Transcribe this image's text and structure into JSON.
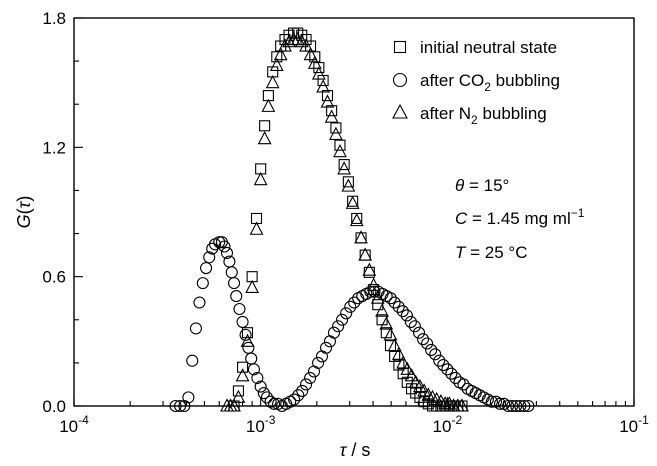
{
  "chart_data": {
    "type": "scatter",
    "title": "",
    "xlabel": {
      "main": "τ",
      "unit": " / s"
    },
    "ylabel": {
      "main": "G",
      "paren_open": "(",
      "var": "τ",
      "paren_close": ")"
    },
    "xscale": "log",
    "xlim": [
      0.0001,
      0.1
    ],
    "ylim": [
      0,
      1.8
    ],
    "grid": false,
    "legend_position": "top-right",
    "x_ticks": [
      {
        "value": 0.0001,
        "base": "10",
        "exp": "-4"
      },
      {
        "value": 0.001,
        "base": "10",
        "exp": "-3"
      },
      {
        "value": 0.01,
        "base": "10",
        "exp": "-2"
      },
      {
        "value": 0.1,
        "base": "10",
        "exp": "-1"
      }
    ],
    "y_ticks": [
      {
        "value": 0,
        "label": "0.0"
      },
      {
        "value": 0.6,
        "label": "0.6"
      },
      {
        "value": 1.2,
        "label": "1.2"
      },
      {
        "value": 1.8,
        "label": "1.8"
      }
    ],
    "series": [
      {
        "name": "initial neutral state",
        "marker": "square",
        "points": [
          [
            0.00072,
            0.0
          ],
          [
            0.00076,
            0.07
          ],
          [
            0.0008,
            0.18
          ],
          [
            0.00085,
            0.34
          ],
          [
            0.0009,
            0.6
          ],
          [
            0.00095,
            0.87
          ],
          [
            0.001,
            1.1
          ],
          [
            0.00105,
            1.3
          ],
          [
            0.0011,
            1.44
          ],
          [
            0.00116,
            1.55
          ],
          [
            0.00122,
            1.62
          ],
          [
            0.00128,
            1.67
          ],
          [
            0.00135,
            1.7
          ],
          [
            0.00142,
            1.72
          ],
          [
            0.0015,
            1.73
          ],
          [
            0.00158,
            1.73
          ],
          [
            0.00166,
            1.72
          ],
          [
            0.00175,
            1.7
          ],
          [
            0.00185,
            1.67
          ],
          [
            0.00195,
            1.62
          ],
          [
            0.00205,
            1.57
          ],
          [
            0.00216,
            1.51
          ],
          [
            0.00228,
            1.44
          ],
          [
            0.0024,
            1.37
          ],
          [
            0.00253,
            1.29
          ],
          [
            0.00266,
            1.21
          ],
          [
            0.0028,
            1.12
          ],
          [
            0.00295,
            1.04
          ],
          [
            0.00311,
            0.95
          ],
          [
            0.00327,
            0.87
          ],
          [
            0.00345,
            0.78
          ],
          [
            0.00363,
            0.7
          ],
          [
            0.00382,
            0.62
          ],
          [
            0.00403,
            0.54
          ],
          [
            0.00424,
            0.47
          ],
          [
            0.00447,
            0.4
          ],
          [
            0.00471,
            0.34
          ],
          [
            0.00496,
            0.28
          ],
          [
            0.00522,
            0.23
          ],
          [
            0.0055,
            0.19
          ],
          [
            0.0058,
            0.15
          ],
          [
            0.0061,
            0.11
          ],
          [
            0.00643,
            0.08
          ],
          [
            0.00677,
            0.06
          ],
          [
            0.00713,
            0.04
          ],
          [
            0.00751,
            0.02
          ],
          [
            0.00791,
            0.01
          ],
          [
            0.00833,
            0.0
          ],
          [
            0.00877,
            0.0
          ],
          [
            0.00924,
            0.0
          ],
          [
            0.00973,
            0.0
          ],
          [
            0.01025,
            0.0
          ],
          [
            0.0108,
            0.0
          ],
          [
            0.01137,
            0.0
          ],
          [
            0.01198,
            0.0
          ]
        ]
      },
      {
        "name": "after CO2 bubbling",
        "legend_parts": {
          "pre": "after CO",
          "sub": "2",
          "post": " bubbling"
        },
        "marker": "circle",
        "points": [
          [
            0.00035,
            0.0
          ],
          [
            0.00037,
            0.0
          ],
          [
            0.00039,
            0.0
          ],
          [
            0.00041,
            0.04
          ],
          [
            0.00043,
            0.21
          ],
          [
            0.00045,
            0.36
          ],
          [
            0.00047,
            0.48
          ],
          [
            0.00049,
            0.57
          ],
          [
            0.00051,
            0.64
          ],
          [
            0.00053,
            0.69
          ],
          [
            0.00055,
            0.73
          ],
          [
            0.00057,
            0.75
          ],
          [
            0.0006,
            0.76
          ],
          [
            0.00062,
            0.76
          ],
          [
            0.00064,
            0.74
          ],
          [
            0.00066,
            0.71
          ],
          [
            0.00068,
            0.67
          ],
          [
            0.0007,
            0.62
          ],
          [
            0.00072,
            0.57
          ],
          [
            0.00074,
            0.51
          ],
          [
            0.00077,
            0.45
          ],
          [
            0.0008,
            0.39
          ],
          [
            0.00083,
            0.33
          ],
          [
            0.00086,
            0.27
          ],
          [
            0.00089,
            0.22
          ],
          [
            0.00092,
            0.17
          ],
          [
            0.00096,
            0.13
          ],
          [
            0.001,
            0.09
          ],
          [
            0.00104,
            0.06
          ],
          [
            0.00108,
            0.04
          ],
          [
            0.00113,
            0.02
          ],
          [
            0.00118,
            0.01
          ],
          [
            0.00124,
            0.01
          ],
          [
            0.0013,
            0.0
          ],
          [
            0.00137,
            0.01
          ],
          [
            0.00144,
            0.02
          ],
          [
            0.00151,
            0.03
          ],
          [
            0.00159,
            0.05
          ],
          [
            0.00167,
            0.07
          ],
          [
            0.00175,
            0.1
          ],
          [
            0.00184,
            0.13
          ],
          [
            0.00193,
            0.16
          ],
          [
            0.00203,
            0.2
          ],
          [
            0.00213,
            0.23
          ],
          [
            0.00224,
            0.27
          ],
          [
            0.00235,
            0.3
          ],
          [
            0.00247,
            0.34
          ],
          [
            0.0026,
            0.37
          ],
          [
            0.00273,
            0.4
          ],
          [
            0.00287,
            0.43
          ],
          [
            0.00302,
            0.46
          ],
          [
            0.00317,
            0.48
          ],
          [
            0.00333,
            0.5
          ],
          [
            0.0035,
            0.51
          ],
          [
            0.00368,
            0.52
          ],
          [
            0.00387,
            0.53
          ],
          [
            0.00407,
            0.53
          ],
          [
            0.00428,
            0.53
          ],
          [
            0.0045,
            0.52
          ],
          [
            0.00473,
            0.51
          ],
          [
            0.00497,
            0.5
          ],
          [
            0.00522,
            0.48
          ],
          [
            0.00549,
            0.46
          ],
          [
            0.00577,
            0.44
          ],
          [
            0.00607,
            0.42
          ],
          [
            0.00638,
            0.39
          ],
          [
            0.0067,
            0.37
          ],
          [
            0.00705,
            0.34
          ],
          [
            0.00741,
            0.31
          ],
          [
            0.00779,
            0.29
          ],
          [
            0.00819,
            0.26
          ],
          [
            0.00861,
            0.24
          ],
          [
            0.00905,
            0.21
          ],
          [
            0.00951,
            0.19
          ],
          [
            0.01,
            0.17
          ],
          [
            0.01051,
            0.15
          ],
          [
            0.01105,
            0.13
          ],
          [
            0.01162,
            0.11
          ],
          [
            0.01221,
            0.1
          ],
          [
            0.01284,
            0.08
          ],
          [
            0.0135,
            0.07
          ],
          [
            0.01419,
            0.06
          ],
          [
            0.01492,
            0.05
          ],
          [
            0.01568,
            0.04
          ],
          [
            0.01649,
            0.03
          ],
          [
            0.01733,
            0.02
          ],
          [
            0.01822,
            0.02
          ],
          [
            0.01915,
            0.01
          ],
          [
            0.02013,
            0.01
          ],
          [
            0.02117,
            0.0
          ],
          [
            0.02225,
            0.0
          ],
          [
            0.02339,
            0.0
          ],
          [
            0.02459,
            0.0
          ],
          [
            0.02585,
            0.0
          ],
          [
            0.02717,
            0.0
          ]
        ]
      },
      {
        "name": "after N2 bubbling",
        "legend_parts": {
          "pre": "after N",
          "sub": "2",
          "post": " bubbling"
        },
        "marker": "triangle",
        "points": [
          [
            0.00066,
            0.0
          ],
          [
            0.00069,
            0.0
          ],
          [
            0.00072,
            0.0
          ],
          [
            0.00076,
            0.04
          ],
          [
            0.0008,
            0.14
          ],
          [
            0.00085,
            0.3
          ],
          [
            0.0009,
            0.55
          ],
          [
            0.00095,
            0.82
          ],
          [
            0.001,
            1.05
          ],
          [
            0.00105,
            1.24
          ],
          [
            0.0011,
            1.39
          ],
          [
            0.00116,
            1.5
          ],
          [
            0.00122,
            1.58
          ],
          [
            0.00128,
            1.63
          ],
          [
            0.00135,
            1.67
          ],
          [
            0.00142,
            1.69
          ],
          [
            0.0015,
            1.7
          ],
          [
            0.00158,
            1.7
          ],
          [
            0.00166,
            1.69
          ],
          [
            0.00175,
            1.67
          ],
          [
            0.00185,
            1.63
          ],
          [
            0.00195,
            1.59
          ],
          [
            0.00205,
            1.54
          ],
          [
            0.00216,
            1.48
          ],
          [
            0.00228,
            1.41
          ],
          [
            0.0024,
            1.34
          ],
          [
            0.00253,
            1.26
          ],
          [
            0.00266,
            1.18
          ],
          [
            0.0028,
            1.1
          ],
          [
            0.00295,
            1.02
          ],
          [
            0.00311,
            0.94
          ],
          [
            0.00327,
            0.86
          ],
          [
            0.00345,
            0.78
          ],
          [
            0.00363,
            0.7
          ],
          [
            0.00382,
            0.63
          ],
          [
            0.00403,
            0.56
          ],
          [
            0.00424,
            0.5
          ],
          [
            0.00447,
            0.44
          ],
          [
            0.00471,
            0.38
          ],
          [
            0.00496,
            0.33
          ],
          [
            0.00522,
            0.28
          ],
          [
            0.0055,
            0.24
          ],
          [
            0.0058,
            0.2
          ],
          [
            0.0061,
            0.17
          ],
          [
            0.00643,
            0.14
          ],
          [
            0.00677,
            0.11
          ],
          [
            0.00713,
            0.09
          ],
          [
            0.00751,
            0.07
          ],
          [
            0.00791,
            0.05
          ],
          [
            0.00833,
            0.04
          ],
          [
            0.00877,
            0.03
          ],
          [
            0.00924,
            0.02
          ],
          [
            0.00973,
            0.01
          ],
          [
            0.01025,
            0.01
          ],
          [
            0.0108,
            0.0
          ],
          [
            0.01137,
            0.0
          ],
          [
            0.01198,
            0.0
          ]
        ]
      }
    ],
    "annotations": [
      {
        "var": "θ",
        "rest": " = 15°"
      },
      {
        "var": "C",
        "rest": " = 1.45 mg ml",
        "sup": "−1"
      },
      {
        "var": "T",
        "rest": " = 25 °C"
      }
    ]
  }
}
